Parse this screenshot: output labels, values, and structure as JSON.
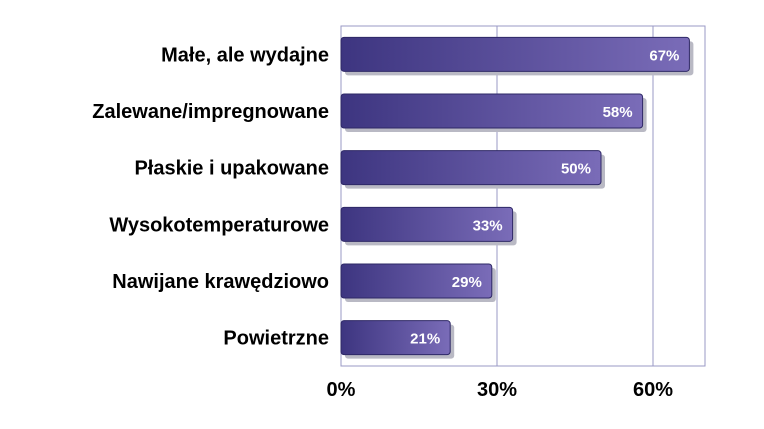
{
  "chart_data": {
    "type": "bar",
    "orientation": "horizontal",
    "categories": [
      "Małe, ale wydajne",
      "Zalewane/impregnowane",
      "Płaskie i upakowane",
      "Wysokotemperaturowe",
      "Nawijane krawędziowo",
      "Powietrzne"
    ],
    "values": [
      67,
      58,
      50,
      33,
      29,
      21
    ],
    "value_labels": [
      "67%",
      "58%",
      "50%",
      "33%",
      "29%",
      "21%"
    ],
    "xticks": [
      0,
      30,
      60
    ],
    "xtick_labels": [
      "0%",
      "30%",
      "60%"
    ],
    "xlim": [
      0,
      70
    ],
    "grid": "vertical",
    "legend": "none",
    "title": "",
    "xlabel": "",
    "ylabel": "",
    "colors": {
      "bar_dark": "#3d3580",
      "bar_light": "#7a6cb8",
      "bar_shadow": "#b9b9c4",
      "grid": "#9a98c6",
      "frame": "#9a98c6"
    }
  }
}
